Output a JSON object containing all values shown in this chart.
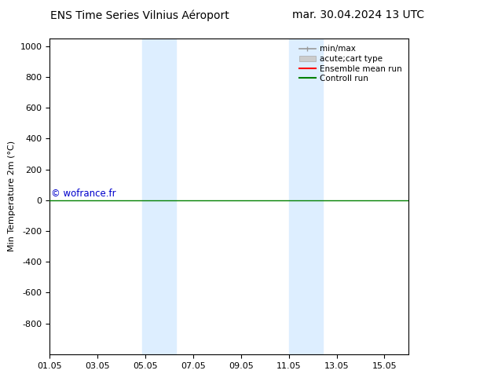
{
  "title_left": "ENS Time Series Vilnius Aéroport",
  "title_right": "mar. 30.04.2024 13 UTC",
  "ylabel": "Min Temperature 2m (°C)",
  "ylim_top": -1000,
  "ylim_bottom": 1050,
  "yticks": [
    -800,
    -600,
    -400,
    -200,
    0,
    200,
    400,
    600,
    800,
    1000
  ],
  "xtick_labels": [
    "01.05",
    "03.05",
    "05.05",
    "07.05",
    "09.05",
    "11.05",
    "13.05",
    "15.05"
  ],
  "xtick_positions": [
    0,
    2,
    4,
    6,
    8,
    10,
    12,
    14
  ],
  "xlim": [
    0,
    15
  ],
  "blue_bands": [
    {
      "xmin": 3.85,
      "xmax": 4.57
    },
    {
      "xmin": 4.57,
      "xmax": 5.28
    },
    {
      "xmin": 10.0,
      "xmax": 10.72
    },
    {
      "xmin": 10.72,
      "xmax": 11.43
    }
  ],
  "green_line_y": 0,
  "green_line_color": "#008000",
  "watermark": "© wofrance.fr",
  "watermark_color": "#0000cc",
  "legend_entries": [
    "min/max",
    "acute;cart type",
    "Ensemble mean run",
    "Controll run"
  ],
  "legend_symbol_colors": [
    "#999999",
    "#cccccc",
    "#ff0000",
    "#008000"
  ],
  "background_color": "#ffffff",
  "band_color": "#ddeeff",
  "title_fontsize": 10,
  "axis_fontsize": 8,
  "tick_fontsize": 8,
  "legend_fontsize": 7.5
}
